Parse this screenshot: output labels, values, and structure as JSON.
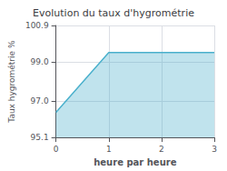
{
  "chart_data": {
    "type": "area",
    "title": "Evolution du taux d'hygrométrie",
    "x_label": "heure par heure",
    "y_label": "Taux hygrométrie %",
    "x": [
      0,
      1,
      3
    ],
    "values": [
      96.4,
      99.5,
      99.5
    ],
    "color": "#4ab0cc",
    "xlim": [
      0,
      3
    ],
    "xticks": [
      0,
      1,
      2,
      3
    ],
    "ylim": [
      95.1,
      100.9
    ],
    "yticks": [
      95.1,
      {
        "value": 97.0,
        "label": "97.0"
      },
      {
        "value": 99.0,
        "label": "99.0"
      },
      100.9
    ],
    "grid": true
  }
}
